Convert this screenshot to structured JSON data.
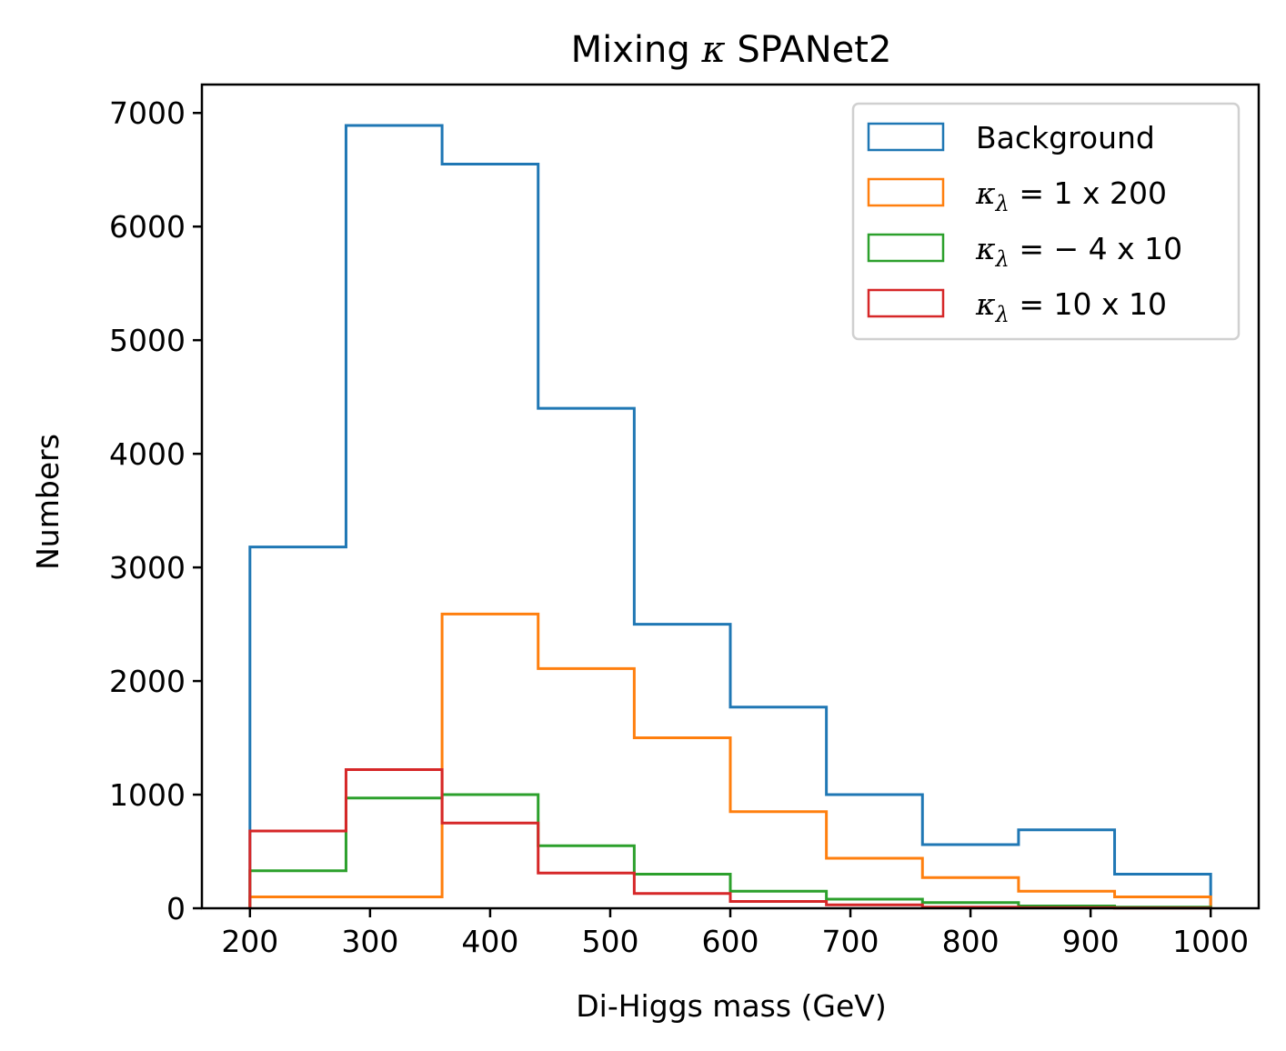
{
  "chart_data": {
    "type": "histogram",
    "title_prefix": "Mixing ",
    "title_symbol": "κ",
    "title_suffix": " SPANet2",
    "xlabel": "Di-Higgs mass (GeV)",
    "ylabel": "Numbers",
    "xlim": [
      160,
      1040
    ],
    "ylim": [
      0,
      7250
    ],
    "xticks": [
      200,
      300,
      400,
      500,
      600,
      700,
      800,
      900,
      1000
    ],
    "yticks": [
      0,
      1000,
      2000,
      3000,
      4000,
      5000,
      6000,
      7000
    ],
    "bin_edges": [
      200,
      280,
      360,
      440,
      520,
      600,
      680,
      760,
      840,
      920,
      1000
    ],
    "grid": false,
    "legend_position": "top-right",
    "series": [
      {
        "name": "Background",
        "color": "#1f77b4",
        "values": [
          3180,
          6890,
          6550,
          4400,
          2500,
          1770,
          1000,
          560,
          690,
          300
        ]
      },
      {
        "name": "κ_λ = 1 x 200",
        "legend": {
          "sub": "λ",
          "rest": " = 1 x 200"
        },
        "color": "#ff7f0e",
        "values": [
          100,
          100,
          2590,
          2110,
          1500,
          850,
          440,
          270,
          150,
          100
        ]
      },
      {
        "name": "κ_λ = −4 x 10",
        "legend": {
          "sub": "λ",
          "rest": " = − 4 x 10"
        },
        "color": "#2ca02c",
        "values": [
          330,
          970,
          1000,
          550,
          300,
          150,
          80,
          50,
          20,
          10
        ]
      },
      {
        "name": "κ_λ = 10 x 10",
        "legend": {
          "sub": "λ",
          "rest": " = 10 x 10"
        },
        "color": "#d62728",
        "values": [
          680,
          1220,
          750,
          310,
          130,
          60,
          30,
          10,
          5,
          2
        ]
      }
    ]
  }
}
